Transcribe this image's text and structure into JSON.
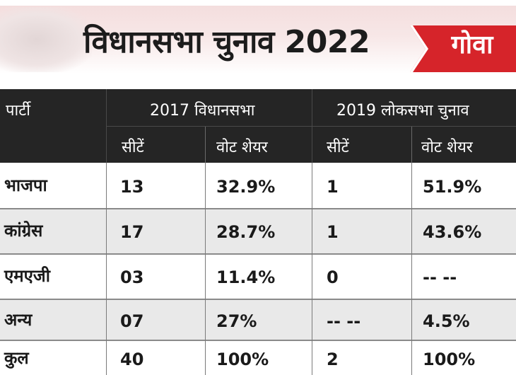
{
  "banner": {
    "title": "विधानसभा चुनाव 2022",
    "state": "गोवा"
  },
  "table": {
    "header": {
      "party": "पार्टी",
      "group_2017": "2017 विधानसभा",
      "group_2019": "2019 लोकसभा चुनाव",
      "seats": "सीटें",
      "vote_share": "वोट शेयर"
    },
    "rows": [
      {
        "party": "भाजपा",
        "seats_2017": "13",
        "vote_2017": "32.9%",
        "seats_2019": "1",
        "vote_2019": "51.9%"
      },
      {
        "party": "कांग्रेस",
        "seats_2017": "17",
        "vote_2017": "28.7%",
        "seats_2019": "1",
        "vote_2019": "43.6%"
      },
      {
        "party": "एमएजी",
        "seats_2017": "03",
        "vote_2017": "11.4%",
        "seats_2019": "0",
        "vote_2019": "-- --"
      },
      {
        "party": "अन्य",
        "seats_2017": "07",
        "vote_2017": "27%",
        "seats_2019": "-- --",
        "vote_2019": "4.5%"
      },
      {
        "party": "कुल",
        "seats_2017": "40",
        "vote_2017": "100%",
        "seats_2019": "2",
        "vote_2019": "100%"
      }
    ]
  },
  "colors": {
    "accent": "#d6242a",
    "header_bg": "#252525",
    "row_alt": "#e9e9e9"
  }
}
